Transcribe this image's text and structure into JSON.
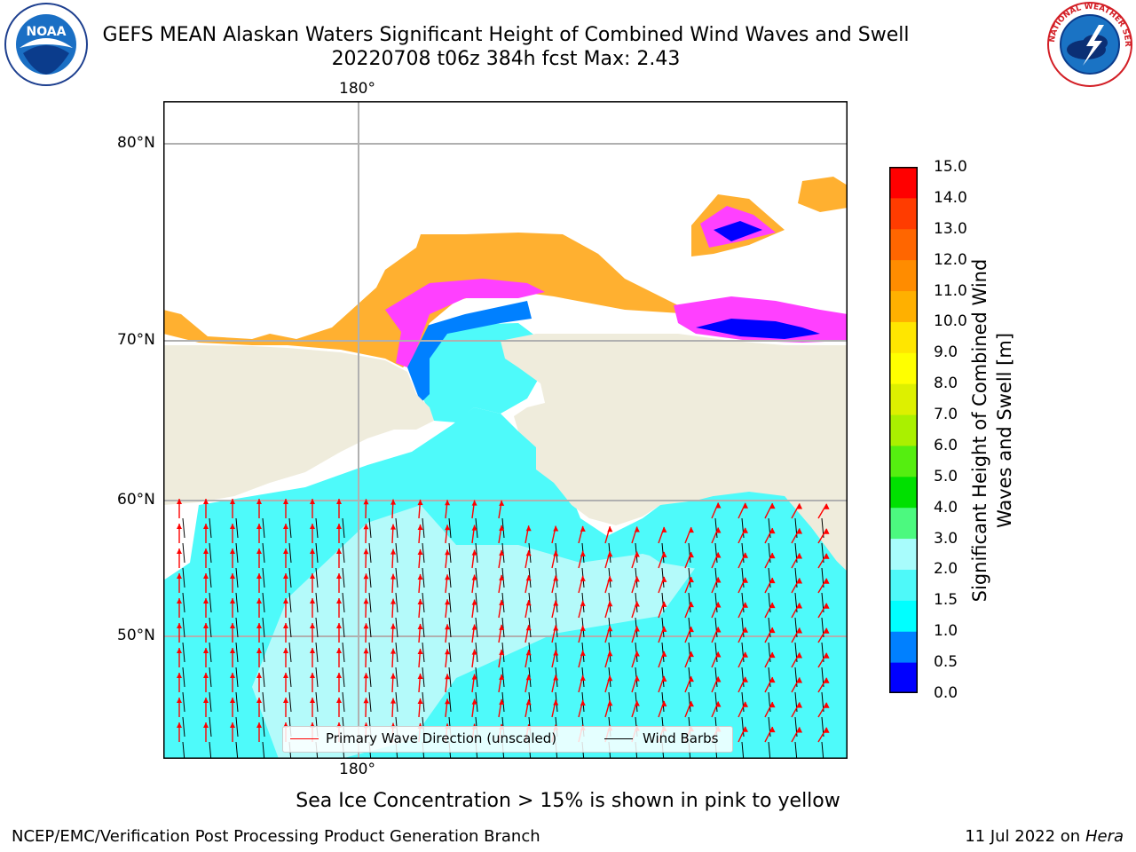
{
  "header": {
    "title_line1": "GEFS MEAN Alaskan Waters Significant Height of Combined Wind Waves and Swell",
    "title_line2": "20220708 t06z 384h fcst   Max: 2.43"
  },
  "logos": {
    "noaa": {
      "icon": "noaa-logo-icon",
      "text": "NOAA"
    },
    "nws": {
      "icon": "nws-logo-icon",
      "text": "NATIONAL WEATHER SERVICE"
    }
  },
  "map": {
    "lon_label_top": "180°",
    "lon_label_bottom": "180°",
    "lat_labels": [
      "80°N",
      "70°N",
      "60°N",
      "50°N"
    ],
    "colors": {
      "land": "#efecdc",
      "ocean_light": "#b4fafa",
      "ocean_cyan": "#4efafa",
      "ocean_blue": "#0080ff",
      "ice_pink": "#ff40ff",
      "ice_orange": "#ffb030",
      "ice_yellow": "#ffd800",
      "deep_blue": "#0000ff",
      "grid": "#b0b0b0",
      "arrow": "#ff0000"
    }
  },
  "colorbar": {
    "ticks": [
      "15.0",
      "14.0",
      "13.0",
      "12.0",
      "11.0",
      "10.0",
      "9.0",
      "8.0",
      "7.0",
      "6.0",
      "5.0",
      "4.0",
      "3.0",
      "2.0",
      "1.5",
      "1.0",
      "0.5",
      "0.0"
    ],
    "colors_bottom_to_top": [
      "#0000ff",
      "#0080ff",
      "#00ffff",
      "#4ef9f9",
      "#a8fcfc",
      "#4cf97f",
      "#00e000",
      "#55ee10",
      "#aaf000",
      "#ddf000",
      "#ffff00",
      "#ffe600",
      "#ffb000",
      "#ff8c00",
      "#ff6600",
      "#ff3c00",
      "#ff0000"
    ],
    "label": "Significant Height of Combined Wind Waves and Swell [m]"
  },
  "legend": {
    "wave_direction": "Primary Wave Direction (unscaled)",
    "wind_barbs": "Wind Barbs"
  },
  "caption": "Sea Ice Concentration > 15% is shown in pink to yellow",
  "footer": {
    "left": "NCEP/EMC/Verification Post Processing Product Generation Branch",
    "right_prefix": "11 Jul 2022 on ",
    "right_host": "Hera"
  }
}
